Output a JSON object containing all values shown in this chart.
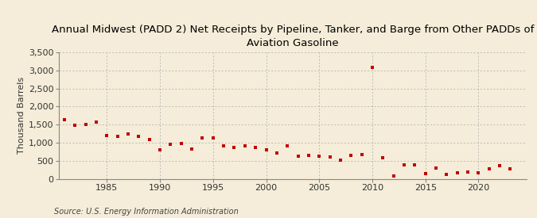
{
  "title": "Annual Midwest (PADD 2) Net Receipts by Pipeline, Tanker, and Barge from Other PADDs of\nAviation Gasoline",
  "ylabel": "Thousand Barrels",
  "source": "Source: U.S. Energy Information Administration",
  "background_color": "#f5edd9",
  "marker_color": "#c00000",
  "years": [
    1981,
    1982,
    1983,
    1984,
    1985,
    1986,
    1987,
    1988,
    1989,
    1990,
    1991,
    1992,
    1993,
    1994,
    1995,
    1996,
    1997,
    1998,
    1999,
    2000,
    2001,
    2002,
    2003,
    2004,
    2005,
    2006,
    2007,
    2008,
    2009,
    2010,
    2011,
    2012,
    2013,
    2014,
    2015,
    2016,
    2017,
    2018,
    2019,
    2020,
    2021,
    2022,
    2023
  ],
  "values": [
    1630,
    1490,
    1500,
    1570,
    1200,
    1170,
    1230,
    1180,
    1080,
    800,
    950,
    970,
    820,
    1130,
    1130,
    900,
    870,
    900,
    870,
    800,
    720,
    910,
    620,
    640,
    620,
    600,
    510,
    650,
    680,
    3080,
    580,
    70,
    380,
    390,
    140,
    300,
    120,
    160,
    180,
    175,
    270,
    360,
    280
  ],
  "ylim": [
    0,
    3500
  ],
  "yticks": [
    0,
    500,
    1000,
    1500,
    2000,
    2500,
    3000,
    3500
  ],
  "ytick_labels": [
    "0",
    "500",
    "1,000",
    "1,500",
    "2,000",
    "2,500",
    "3,000",
    "3,500"
  ],
  "xticks": [
    1985,
    1990,
    1995,
    2000,
    2005,
    2010,
    2015,
    2020
  ],
  "xlim": [
    1980.5,
    2024.5
  ],
  "grid_color": "#aaaaaa",
  "title_fontsize": 9.5,
  "axis_fontsize": 8,
  "source_fontsize": 7
}
